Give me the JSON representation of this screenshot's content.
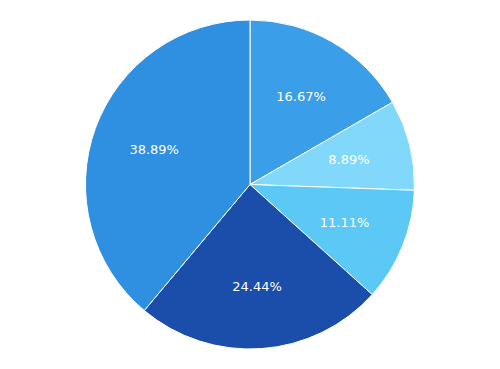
{
  "chart_data": {
    "type": "pie",
    "values": [
      16.67,
      8.89,
      11.11,
      24.44,
      38.89
    ],
    "value_labels": [
      "16.67%",
      "8.89%",
      "11.11%",
      "24.44%",
      "38.89%"
    ],
    "colors": [
      "#3A9EE8",
      "#82D8FA",
      "#5BC8F5",
      "#1A4EAA",
      "#2F8FE0"
    ],
    "data_labels": true
  }
}
